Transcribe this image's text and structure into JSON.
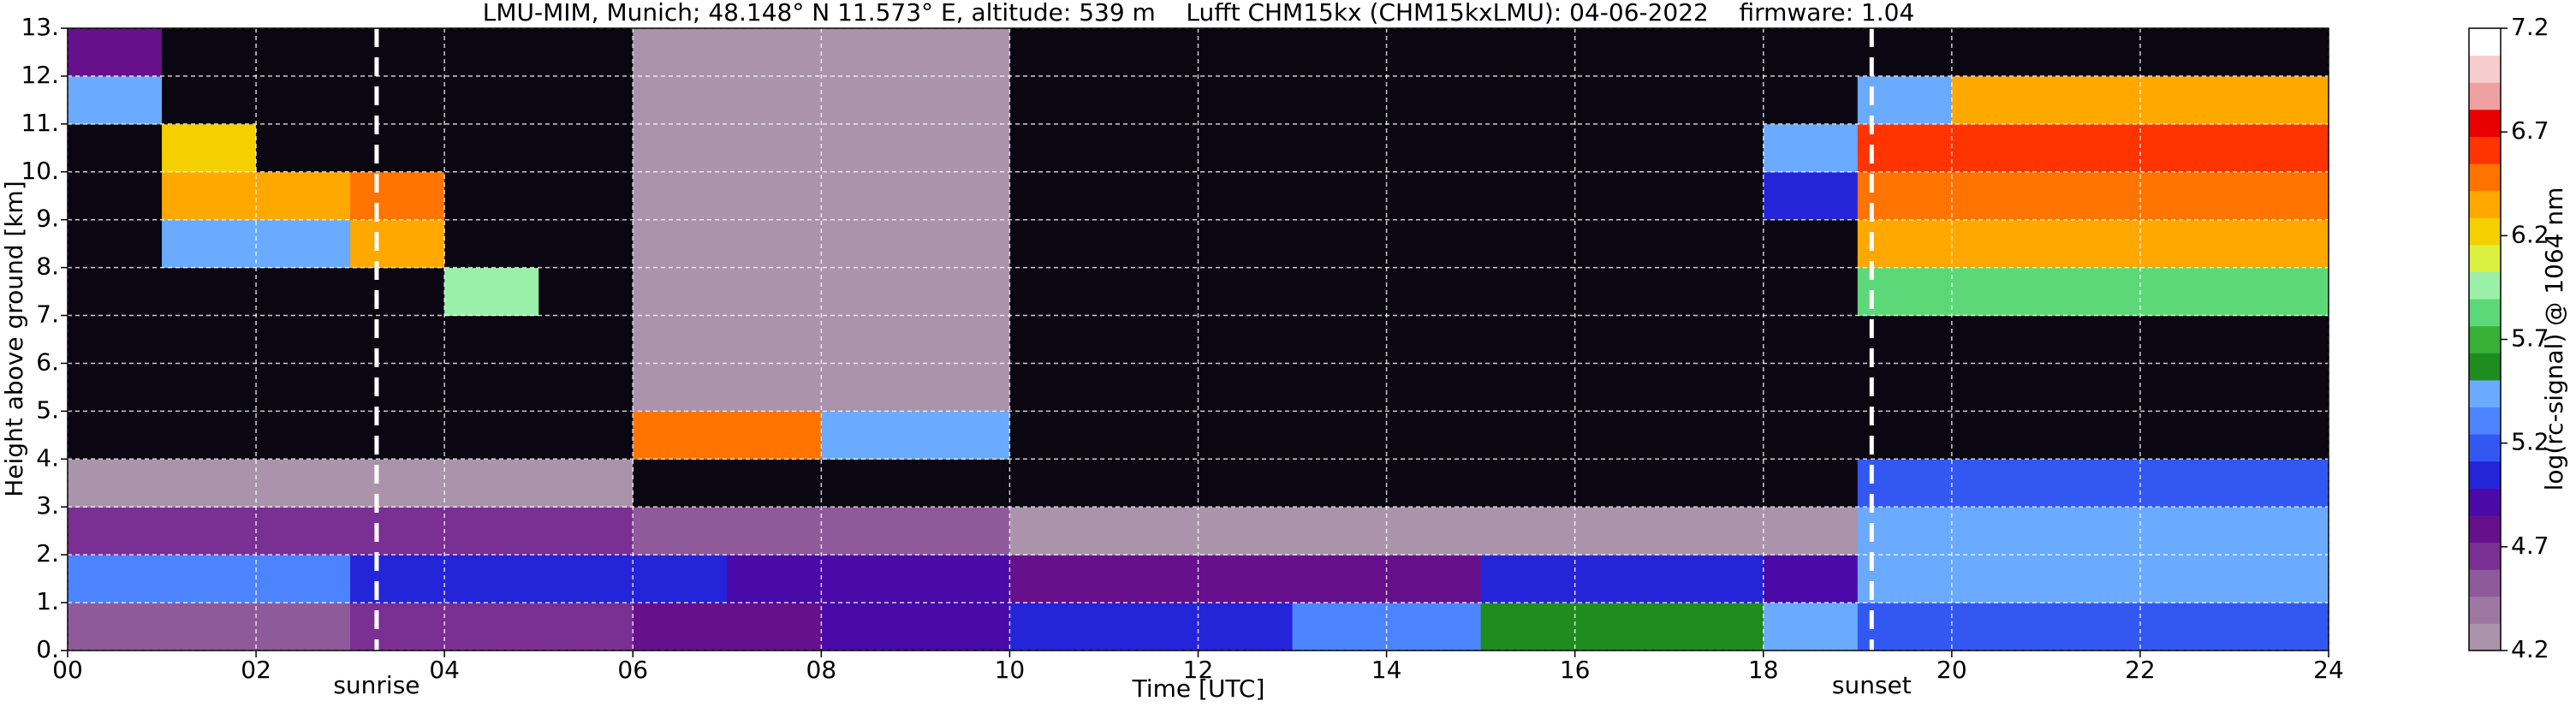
{
  "chart_data": {
    "type": "heatmap",
    "title": "LMU-MIM, Munich; 48.148° N 11.573° E, altitude: 539 m    Lufft CHM15kx (CHM15kxLMU): 04-06-2022    firmware: 1.04",
    "xlabel": "Time [UTC]",
    "ylabel": "Height above ground [km]",
    "xlim": [
      0,
      24
    ],
    "ylim": [
      0,
      13
    ],
    "xticks": [
      {
        "value": 0,
        "label": "00"
      },
      {
        "value": 2,
        "label": "02"
      },
      {
        "value": 4,
        "label": "04"
      },
      {
        "value": 6,
        "label": "06"
      },
      {
        "value": 8,
        "label": "08"
      },
      10,
      12,
      14,
      16,
      18,
      20,
      22,
      24
    ],
    "yticks": [
      {
        "value": 0,
        "label": "0."
      },
      {
        "value": 1,
        "label": "1."
      },
      {
        "value": 2,
        "label": "2."
      },
      {
        "value": 3,
        "label": "3."
      },
      {
        "value": 4,
        "label": "4."
      },
      {
        "value": 5,
        "label": "5."
      },
      {
        "value": 6,
        "label": "6."
      },
      {
        "value": 7,
        "label": "7."
      },
      {
        "value": 8,
        "label": "8."
      },
      {
        "value": 9,
        "label": "9."
      },
      {
        "value": 10,
        "label": "10."
      },
      {
        "value": 11,
        "label": "11."
      },
      {
        "value": 12,
        "label": "12."
      },
      {
        "value": 13,
        "label": "13."
      }
    ],
    "grid": true,
    "xbins": [
      0,
      1,
      2,
      3,
      4,
      5,
      6,
      7,
      8,
      9,
      10,
      11,
      12,
      13,
      14,
      15,
      16,
      17,
      18,
      19,
      20,
      21,
      22,
      23,
      24
    ],
    "ybins": [
      0,
      1,
      2,
      3,
      4,
      5,
      6,
      7,
      8,
      9,
      10,
      11,
      12,
      13
    ],
    "values": [
      [
        4.5,
        4.5,
        4.5,
        4.6,
        4.6,
        4.6,
        4.8,
        4.8,
        4.9,
        4.9,
        5.1,
        5.1,
        5.1,
        5.3,
        5.3,
        5.6,
        5.6,
        5.6,
        5.4,
        5.2,
        5.2,
        5.2,
        5.2,
        5.2
      ],
      [
        5.3,
        5.3,
        5.3,
        5.1,
        5.1,
        5.1,
        5.1,
        4.9,
        4.9,
        4.9,
        4.8,
        4.8,
        4.8,
        4.8,
        4.8,
        5.1,
        5.1,
        5.1,
        4.9,
        5.5,
        5.5,
        5.5,
        5.5,
        5.5
      ],
      [
        4.7,
        4.7,
        4.7,
        4.6,
        4.6,
        4.6,
        4.5,
        4.5,
        4.5,
        4.5,
        4.3,
        4.3,
        4.3,
        4.3,
        4.3,
        4.3,
        4.3,
        4.3,
        4.3,
        5.4,
        5.4,
        5.4,
        5.4,
        5.4
      ],
      [
        4.3,
        4.3,
        4.3,
        4.3,
        4.3,
        4.3,
        4.1,
        4.1,
        4.1,
        4.1,
        4.1,
        4.1,
        4.1,
        4.1,
        4.1,
        4.1,
        4.1,
        4.1,
        4.1,
        5.2,
        5.2,
        5.2,
        5.2,
        5.2
      ],
      [
        4.0,
        4.0,
        4.0,
        4.0,
        4.0,
        4.0,
        6.5,
        6.5,
        5.5,
        5.5,
        4.0,
        4.0,
        4.0,
        4.0,
        4.0,
        4.0,
        4.0,
        4.0,
        4.0,
        4.0,
        4.0,
        4.0,
        4.0,
        4.0
      ],
      [
        4.0,
        4.0,
        4.0,
        4.0,
        4.0,
        4.0,
        4.2,
        4.2,
        4.2,
        4.2,
        4.0,
        4.0,
        4.0,
        4.0,
        4.0,
        4.0,
        4.0,
        4.0,
        4.0,
        4.0,
        4.0,
        4.0,
        4.0,
        4.0
      ],
      [
        4.0,
        4.0,
        4.0,
        4.0,
        4.0,
        4.0,
        4.2,
        4.2,
        4.2,
        4.2,
        4.0,
        4.0,
        4.0,
        4.0,
        4.0,
        4.0,
        4.0,
        4.0,
        4.0,
        4.0,
        4.0,
        4.0,
        4.0,
        4.0
      ],
      [
        4.0,
        4.0,
        4.0,
        4.0,
        6.0,
        4.0,
        4.2,
        4.2,
        4.2,
        4.2,
        4.0,
        4.0,
        4.0,
        4.0,
        4.0,
        4.0,
        4.0,
        4.0,
        4.0,
        5.8,
        5.8,
        5.8,
        5.8,
        5.8
      ],
      [
        4.0,
        5.5,
        5.5,
        6.3,
        4.0,
        4.0,
        4.2,
        4.2,
        4.2,
        4.2,
        4.0,
        4.0,
        4.0,
        4.0,
        4.0,
        4.0,
        4.0,
        4.0,
        4.0,
        6.3,
        6.3,
        6.3,
        6.3,
        6.3
      ],
      [
        4.0,
        6.4,
        6.4,
        6.5,
        4.0,
        4.0,
        4.2,
        4.2,
        4.2,
        4.2,
        4.0,
        4.0,
        4.0,
        4.0,
        4.0,
        4.0,
        4.0,
        4.0,
        5.0,
        6.5,
        6.5,
        6.5,
        6.5,
        6.5
      ],
      [
        4.0,
        6.2,
        4.0,
        4.0,
        4.0,
        4.0,
        4.2,
        4.2,
        4.2,
        4.2,
        4.0,
        4.0,
        4.0,
        4.0,
        4.0,
        4.0,
        4.0,
        4.0,
        5.5,
        6.6,
        6.6,
        6.6,
        6.6,
        6.6
      ],
      [
        5.5,
        4.0,
        4.0,
        4.0,
        4.0,
        4.0,
        4.2,
        4.2,
        4.2,
        4.2,
        4.0,
        4.0,
        4.0,
        4.0,
        4.0,
        4.0,
        4.0,
        4.0,
        4.0,
        5.5,
        6.4,
        6.4,
        6.4,
        6.4
      ],
      [
        4.8,
        4.0,
        4.0,
        4.0,
        4.0,
        4.0,
        4.2,
        4.2,
        4.2,
        4.2,
        4.0,
        4.0,
        4.0,
        4.0,
        4.0,
        4.0,
        4.0,
        4.0,
        4.0,
        4.0,
        4.0,
        4.0,
        4.0,
        4.0
      ]
    ],
    "under_color": "#0a0612",
    "annotations": [
      {
        "text": "sunrise",
        "x": 3.28
      },
      {
        "text": "sunset",
        "x": 19.15
      }
    ],
    "colorbar": {
      "label": "log(rc-signal) @ 1064 nm",
      "lim": [
        4.2,
        7.2
      ],
      "ticks": [
        4.2,
        4.7,
        5.2,
        5.7,
        6.2,
        6.7,
        7.2
      ],
      "colors": [
        "#ab93ab",
        "#9e78a3",
        "#8f5a9a",
        "#7a2f92",
        "#66108c",
        "#4a0aa8",
        "#2424d8",
        "#3358f2",
        "#4c84ff",
        "#6aaaff",
        "#1e8c1e",
        "#38b038",
        "#5cd878",
        "#9af0a8",
        "#dcf040",
        "#f4d000",
        "#ffa800",
        "#ff7400",
        "#ff3400",
        "#e80000",
        "#eea0a0",
        "#f6cccc",
        "#ffffff"
      ]
    }
  }
}
